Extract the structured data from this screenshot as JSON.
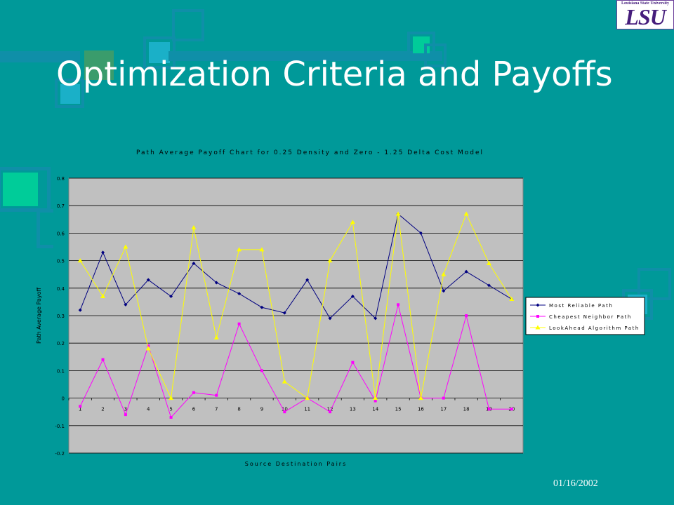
{
  "slide": {
    "title": "Optimization Criteria and Payoffs",
    "date": "01/16/2002"
  },
  "logo": {
    "text": "LSU",
    "subtext": "Louisiana State University"
  },
  "colors": {
    "background": "#009999",
    "plot_area": "#c0c0c0",
    "series_reliable": "#000080",
    "series_cheapest": "#ff00ff",
    "series_lookahead": "#ffff00",
    "deco_light": "#1ab0c8",
    "deco_green": "#00cc99"
  },
  "chart_data": {
    "type": "line",
    "title": "Path Average Payoff Chart for 0.25 Density and Zero - 1.25 Delta Cost Model",
    "xlabel": "Source Destination Pairs",
    "ylabel": "Path Average Payoff",
    "categories": [
      "1",
      "2",
      "3",
      "4",
      "5",
      "6",
      "7",
      "8",
      "9",
      "10",
      "11",
      "12",
      "13",
      "14",
      "15",
      "16",
      "17",
      "18",
      "19",
      "20"
    ],
    "ylim": [
      -0.2,
      0.8
    ],
    "yticks": [
      -0.2,
      -0.1,
      0,
      0.1,
      0.2,
      0.3,
      0.4,
      0.5,
      0.6,
      0.7,
      0.8
    ],
    "grid": true,
    "legend_position": "right",
    "series": [
      {
        "name": "Most Reliable Path",
        "color": "#000080",
        "marker": "diamond",
        "values": [
          0.32,
          0.53,
          0.34,
          0.43,
          0.37,
          0.49,
          0.42,
          0.38,
          0.33,
          0.31,
          0.43,
          0.29,
          0.37,
          0.29,
          0.67,
          0.6,
          0.39,
          0.46,
          0.41,
          0.36
        ]
      },
      {
        "name": "Cheapest Neighbor Path",
        "color": "#ff00ff",
        "marker": "square",
        "values": [
          -0.03,
          0.14,
          -0.06,
          0.19,
          -0.07,
          0.02,
          0.01,
          0.27,
          0.1,
          -0.05,
          0.0,
          -0.05,
          0.13,
          -0.01,
          0.34,
          0.0,
          0.0,
          0.3,
          -0.04,
          -0.04
        ]
      },
      {
        "name": "LookAhead Algorithm Path",
        "color": "#ffff00",
        "marker": "triangle",
        "values": [
          0.5,
          0.37,
          0.55,
          0.18,
          0.0,
          0.62,
          0.22,
          0.54,
          0.54,
          0.06,
          0.0,
          0.5,
          0.64,
          0.0,
          0.67,
          0.0,
          0.45,
          0.67,
          0.49,
          0.36
        ]
      }
    ]
  }
}
